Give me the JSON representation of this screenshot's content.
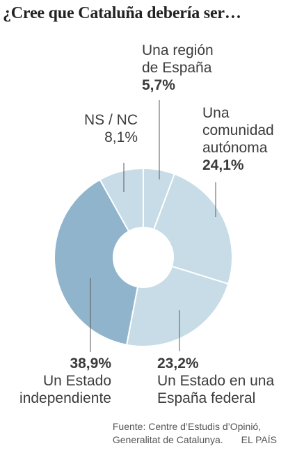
{
  "title": "¿Cree que Cataluña debería ser…",
  "chart_data": {
    "type": "pie",
    "title": "¿Cree que Cataluña debería ser…",
    "slices": [
      {
        "label": "Una región de España",
        "value": 5.7,
        "display": "5,7%",
        "color": "#c7dce6"
      },
      {
        "label": "Una comunidad autónoma",
        "value": 24.1,
        "display": "24,1%",
        "color": "#c7dce6"
      },
      {
        "label": "Un Estado en una España federal",
        "value": 23.2,
        "display": "23,2%",
        "color": "#c7dce6"
      },
      {
        "label": "Un Estado independiente",
        "value": 38.9,
        "display": "38,9%",
        "color": "#8fb4cc"
      },
      {
        "label": "NS / NC",
        "value": 8.1,
        "display": "8,1%",
        "color": "#c7dce6"
      }
    ]
  },
  "labels": {
    "region": {
      "line1": "Una región",
      "line2": "de España",
      "pct": "5,7%"
    },
    "autonoma": {
      "line1": "Una",
      "line2": "comunidad",
      "line3": "autónoma",
      "pct": "24,1%"
    },
    "federal": {
      "pct": "23,2%",
      "line1": "Un Estado en una",
      "line2": "España federal"
    },
    "independiente": {
      "pct": "38,9%",
      "line1": "Un Estado",
      "line2": "independiente"
    },
    "nsnc": {
      "line1": "NS / NC",
      "pct": "8,1%"
    }
  },
  "source": {
    "line1": "Fuente: Centre d’Estudis d’Opinió,",
    "line2": "Generalitat de Catalunya.",
    "brand": "EL PAÍS"
  }
}
